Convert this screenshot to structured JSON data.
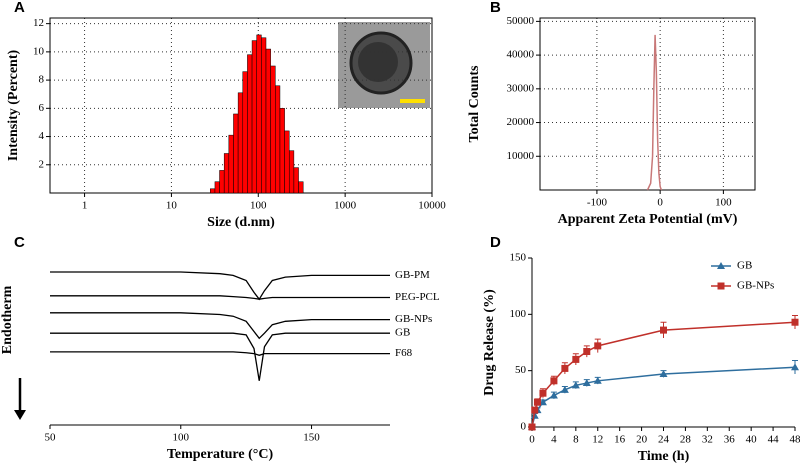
{
  "chart_data": [
    {
      "type": "histogram",
      "panel_label": "A",
      "x_label": "Size (d.nm)",
      "y_label": "Intensity (Percent)",
      "bins": [
        28,
        31.7,
        35.8,
        40.5,
        45.8,
        51.8,
        58.6,
        66.3,
        75,
        84.8,
        95.9,
        108.5,
        122.7,
        138.8,
        157,
        177.6,
        200.9,
        227.2,
        257,
        290.7,
        328.8
      ],
      "values": [
        0.3,
        0.8,
        1.6,
        2.8,
        4.1,
        5.6,
        7.1,
        8.6,
        9.8,
        10.8,
        11.2,
        11,
        10.2,
        9,
        7.6,
        6,
        4.4,
        3,
        1.8,
        0.8
      ],
      "color": "#ff0000",
      "x_log": true,
      "xlim": [
        0.4,
        10000
      ],
      "xticks": [
        1,
        10,
        100,
        1000,
        10000
      ],
      "ylim": [
        0,
        12.4
      ],
      "yticks": [
        2,
        4,
        6,
        8,
        10,
        12
      ],
      "grid": true
    },
    {
      "type": "line",
      "panel_label": "B",
      "x_label": "Apparent Zeta Potential (mV)",
      "y_label": "Total Counts",
      "x": [
        -20,
        -15,
        -12,
        -10,
        -8,
        -6,
        -4,
        -2,
        0,
        2
      ],
      "values": [
        0,
        2000,
        10000,
        30000,
        46000,
        35000,
        15000,
        5000,
        1000,
        0
      ],
      "color": "#c87878",
      "xlim": [
        -190,
        150
      ],
      "xticks": [
        -100,
        0,
        100
      ],
      "ylim": [
        0,
        51000
      ],
      "yticks": [
        10000,
        20000,
        30000,
        40000,
        50000
      ],
      "grid": true
    },
    {
      "type": "line",
      "panel_label": "C",
      "x_label": "Temperature (°C)",
      "y_label": "Endotherm",
      "x": [
        50,
        100,
        115,
        120,
        125,
        128,
        130,
        132,
        135,
        140,
        150,
        180
      ],
      "series": [
        {
          "name": "GB-PM",
          "color": "#000000",
          "values": [
            9,
            9,
            8.9,
            8.8,
            8.5,
            7.8,
            7.4,
            7.9,
            8.5,
            8.7,
            8.8,
            8.8
          ]
        },
        {
          "name": "PEG-PCL",
          "color": "#000000",
          "values": [
            7.6,
            7.6,
            7.6,
            7.55,
            7.5,
            7.45,
            7.4,
            7.45,
            7.5,
            7.5,
            7.5,
            7.5
          ]
        },
        {
          "name": "GB-NPs",
          "color": "#000000",
          "values": [
            6.6,
            6.6,
            6.5,
            6.4,
            6.1,
            5.5,
            5.1,
            5.4,
            5.9,
            6.1,
            6.2,
            6.2
          ]
        },
        {
          "name": "GB",
          "color": "#000000",
          "values": [
            5.4,
            5.4,
            5.4,
            5.4,
            5.3,
            4.5,
            2.6,
            4.6,
            5.3,
            5.4,
            5.4,
            5.4
          ]
        },
        {
          "name": "F68",
          "color": "#000000",
          "values": [
            4.3,
            4.3,
            4.3,
            4.3,
            4.25,
            4.2,
            4.1,
            4.2,
            4.2,
            4.2,
            4.2,
            4.2
          ]
        }
      ],
      "xlim": [
        50,
        180
      ],
      "xticks": [
        50,
        100,
        150
      ],
      "ylim": [
        0,
        10
      ],
      "grid": false
    },
    {
      "type": "line",
      "panel_label": "D",
      "x_label": "Time (h)",
      "y_label": "Drug Release (%)",
      "x": [
        0,
        0.5,
        1,
        2,
        4,
        6,
        8,
        10,
        12,
        24,
        48
      ],
      "series": [
        {
          "name": "GB",
          "color": "#2e6e9e",
          "marker": "triangle",
          "values": [
            0,
            10,
            15,
            22,
            28,
            33,
            37,
            39,
            41,
            47,
            53
          ],
          "errors": [
            0,
            2,
            2,
            2,
            3,
            3,
            3,
            3,
            3,
            3,
            6
          ]
        },
        {
          "name": "GB-NPs",
          "color": "#c0302a",
          "marker": "square",
          "values": [
            0,
            15,
            22,
            30,
            41,
            52,
            60,
            67,
            72,
            86,
            93
          ],
          "errors": [
            0,
            2,
            3,
            4,
            4,
            5,
            5,
            5,
            6,
            7,
            6
          ]
        }
      ],
      "xlim": [
        0,
        48
      ],
      "xticks": [
        0,
        4,
        8,
        12,
        16,
        20,
        24,
        28,
        32,
        36,
        40,
        44,
        48
      ],
      "ylim": [
        0,
        150
      ],
      "yticks": [
        0,
        50,
        100,
        150
      ],
      "grid": false,
      "legend": "top-right"
    }
  ]
}
